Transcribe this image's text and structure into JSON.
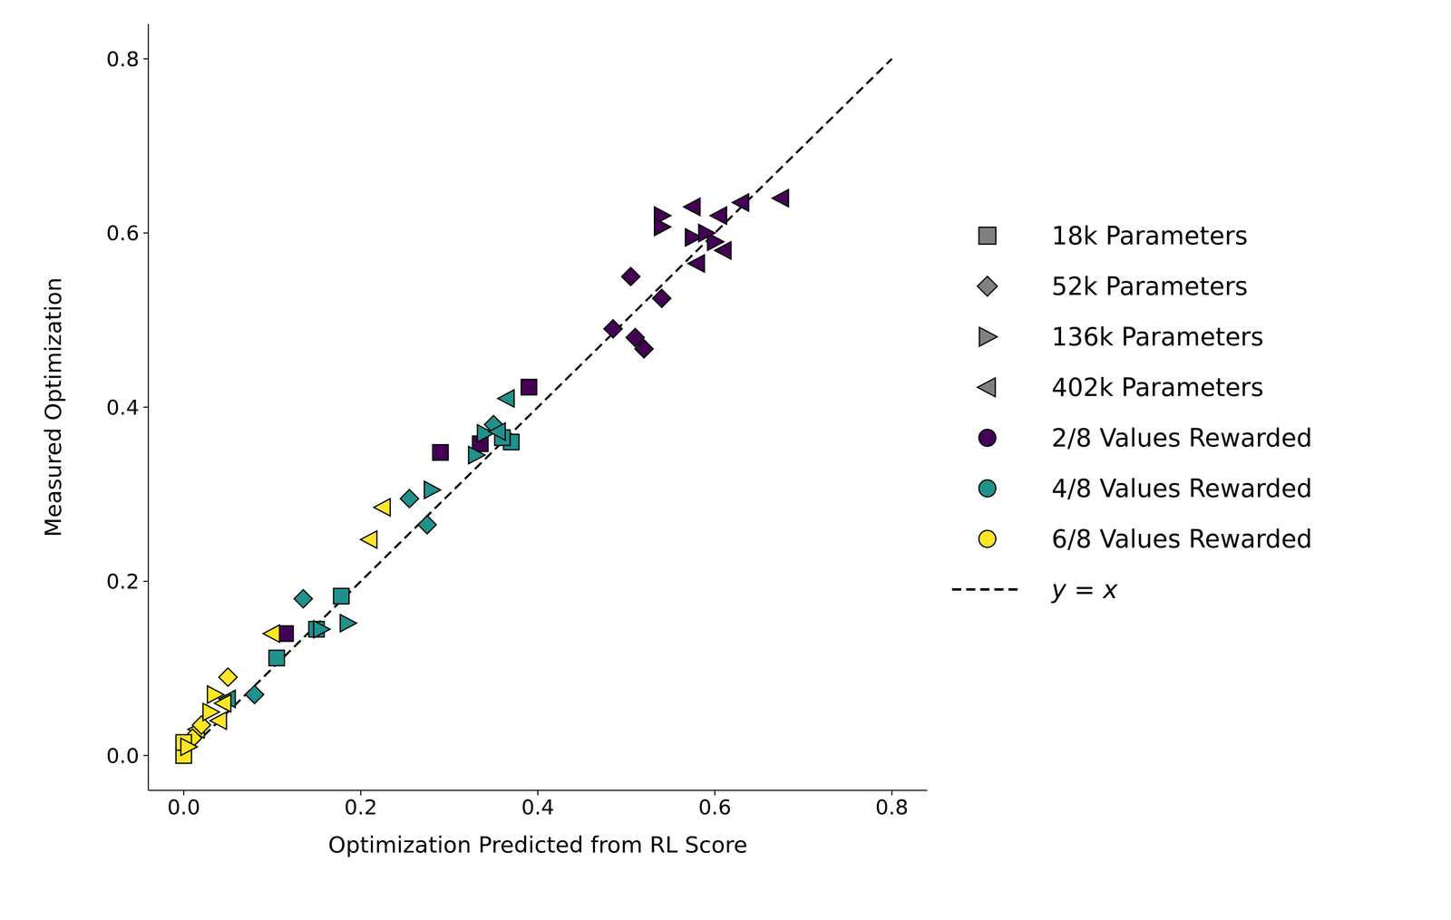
{
  "chart_data": {
    "type": "scatter",
    "xlabel": "Optimization Predicted from RL Score",
    "ylabel": "Measured Optimization",
    "xlim": [
      -0.04,
      0.84
    ],
    "ylim": [
      -0.04,
      0.84
    ],
    "xticks": [
      {
        "value": 0,
        "label": "0.0"
      },
      0.2,
      0.4,
      0.6,
      0.8
    ],
    "yticks": [
      {
        "value": 0,
        "label": "0.0"
      },
      0.2,
      0.4,
      0.6,
      0.8
    ],
    "grid": false,
    "legend": "right",
    "markers": [
      {
        "name": "18k Parameters",
        "marker": "square",
        "color": "#808080"
      },
      {
        "name": "52k Parameters",
        "marker": "diamond",
        "color": "#808080"
      },
      {
        "name": "136k Parameters",
        "marker": "triangle_right",
        "color": "#808080"
      },
      {
        "name": "402k Parameters",
        "marker": "triangle_left",
        "color": "#808080"
      }
    ],
    "series": [
      {
        "name": "2/8 Values Rewarded",
        "color": "#440154",
        "marker": "circle",
        "points": [
          {
            "x": 0.505,
            "y": 0.55,
            "marker": "diamond"
          },
          {
            "x": 0.485,
            "y": 0.49,
            "marker": "diamond"
          },
          {
            "x": 0.51,
            "y": 0.48,
            "marker": "diamond"
          },
          {
            "x": 0.52,
            "y": 0.467,
            "marker": "diamond"
          },
          {
            "x": 0.54,
            "y": 0.525,
            "marker": "diamond"
          },
          {
            "x": 0.54,
            "y": 0.62,
            "marker": "triangle_right"
          },
          {
            "x": 0.54,
            "y": 0.607,
            "marker": "triangle_right"
          },
          {
            "x": 0.575,
            "y": 0.595,
            "marker": "triangle_right"
          },
          {
            "x": 0.6,
            "y": 0.59,
            "marker": "triangle_right"
          },
          {
            "x": 0.59,
            "y": 0.6,
            "marker": "triangle_right"
          },
          {
            "x": 0.575,
            "y": 0.63,
            "marker": "triangle_left"
          },
          {
            "x": 0.605,
            "y": 0.62,
            "marker": "triangle_left"
          },
          {
            "x": 0.63,
            "y": 0.635,
            "marker": "triangle_left"
          },
          {
            "x": 0.675,
            "y": 0.64,
            "marker": "triangle_left"
          },
          {
            "x": 0.58,
            "y": 0.565,
            "marker": "triangle_left"
          },
          {
            "x": 0.61,
            "y": 0.58,
            "marker": "triangle_left"
          },
          {
            "x": 0.39,
            "y": 0.423,
            "marker": "square"
          },
          {
            "x": 0.29,
            "y": 0.348,
            "marker": "square"
          },
          {
            "x": 0.335,
            "y": 0.358,
            "marker": "square"
          },
          {
            "x": 0.115,
            "y": 0.14,
            "marker": "square"
          }
        ]
      },
      {
        "name": "4/8 Values Rewarded",
        "color": "#21918c",
        "marker": "circle",
        "points": [
          {
            "x": 0.178,
            "y": 0.183,
            "marker": "square"
          },
          {
            "x": 0.105,
            "y": 0.112,
            "marker": "square"
          },
          {
            "x": 0.15,
            "y": 0.145,
            "marker": "square"
          },
          {
            "x": 0.37,
            "y": 0.36,
            "marker": "square"
          },
          {
            "x": 0.36,
            "y": 0.365,
            "marker": "square"
          },
          {
            "x": 0.135,
            "y": 0.18,
            "marker": "diamond"
          },
          {
            "x": 0.255,
            "y": 0.295,
            "marker": "diamond"
          },
          {
            "x": 0.275,
            "y": 0.265,
            "marker": "diamond"
          },
          {
            "x": 0.08,
            "y": 0.07,
            "marker": "diamond"
          },
          {
            "x": 0.35,
            "y": 0.38,
            "marker": "diamond"
          },
          {
            "x": 0.185,
            "y": 0.152,
            "marker": "triangle_right"
          },
          {
            "x": 0.28,
            "y": 0.305,
            "marker": "triangle_right"
          },
          {
            "x": 0.33,
            "y": 0.345,
            "marker": "triangle_right"
          },
          {
            "x": 0.34,
            "y": 0.37,
            "marker": "triangle_right"
          },
          {
            "x": 0.155,
            "y": 0.145,
            "marker": "triangle_right"
          },
          {
            "x": 0.365,
            "y": 0.41,
            "marker": "triangle_left"
          },
          {
            "x": 0.355,
            "y": 0.372,
            "marker": "triangle_left"
          },
          {
            "x": 0.05,
            "y": 0.065,
            "marker": "triangle_left"
          }
        ]
      },
      {
        "name": "6/8 Values Rewarded",
        "color": "#fde725",
        "marker": "circle",
        "points": [
          {
            "x": 0.225,
            "y": 0.285,
            "marker": "triangle_left"
          },
          {
            "x": 0.21,
            "y": 0.248,
            "marker": "triangle_left"
          },
          {
            "x": 0.1,
            "y": 0.14,
            "marker": "triangle_left"
          },
          {
            "x": 0.04,
            "y": 0.04,
            "marker": "triangle_left"
          },
          {
            "x": 0.045,
            "y": 0.06,
            "marker": "triangle_left"
          },
          {
            "x": 0.015,
            "y": 0.03,
            "marker": "triangle_left"
          },
          {
            "x": 0.05,
            "y": 0.09,
            "marker": "diamond"
          },
          {
            "x": 0.02,
            "y": 0.035,
            "marker": "diamond"
          },
          {
            "x": 0.01,
            "y": 0.02,
            "marker": "diamond"
          },
          {
            "x": 0.0,
            "y": 0.0,
            "marker": "square"
          },
          {
            "x": 0.0,
            "y": 0.015,
            "marker": "square"
          },
          {
            "x": 0.035,
            "y": 0.07,
            "marker": "triangle_right"
          },
          {
            "x": 0.03,
            "y": 0.05,
            "marker": "triangle_right"
          },
          {
            "x": 0.005,
            "y": 0.01,
            "marker": "triangle_right"
          }
        ]
      }
    ],
    "reference_line": {
      "name": "y = x",
      "x": [
        0,
        0.8
      ],
      "y": [
        0,
        0.8
      ],
      "line_style": "dashed",
      "color": "#000000"
    }
  }
}
